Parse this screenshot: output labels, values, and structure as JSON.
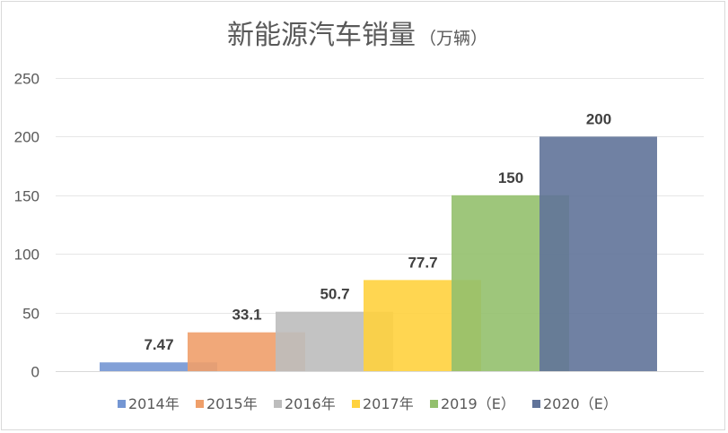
{
  "chart_data": {
    "type": "bar",
    "title": "新能源汽车销量",
    "title_unit": "（万辆）",
    "xlabel": "",
    "ylabel": "",
    "ylim": [
      0,
      250
    ],
    "yticks": [
      0,
      50,
      100,
      150,
      200,
      250
    ],
    "grid": true,
    "legend_position": "bottom",
    "overlapping_bars": true,
    "series": [
      {
        "name": "2014年",
        "value": 7.47,
        "label": "7.47",
        "color": "#7496D3"
      },
      {
        "name": "2015年",
        "value": 33.1,
        "label": "33.1",
        "color": "#EF9F6A"
      },
      {
        "name": "2016年",
        "value": 50.7,
        "label": "50.7",
        "color": "#BDBDBD"
      },
      {
        "name": "2017年",
        "value": 77.7,
        "label": "77.7",
        "color": "#FFD23E"
      },
      {
        "name": "2019（E）",
        "value": 150,
        "label": "150",
        "color": "#93C06D"
      },
      {
        "name": "2020（E）",
        "value": 200,
        "label": "200",
        "color": "#607399"
      }
    ]
  }
}
